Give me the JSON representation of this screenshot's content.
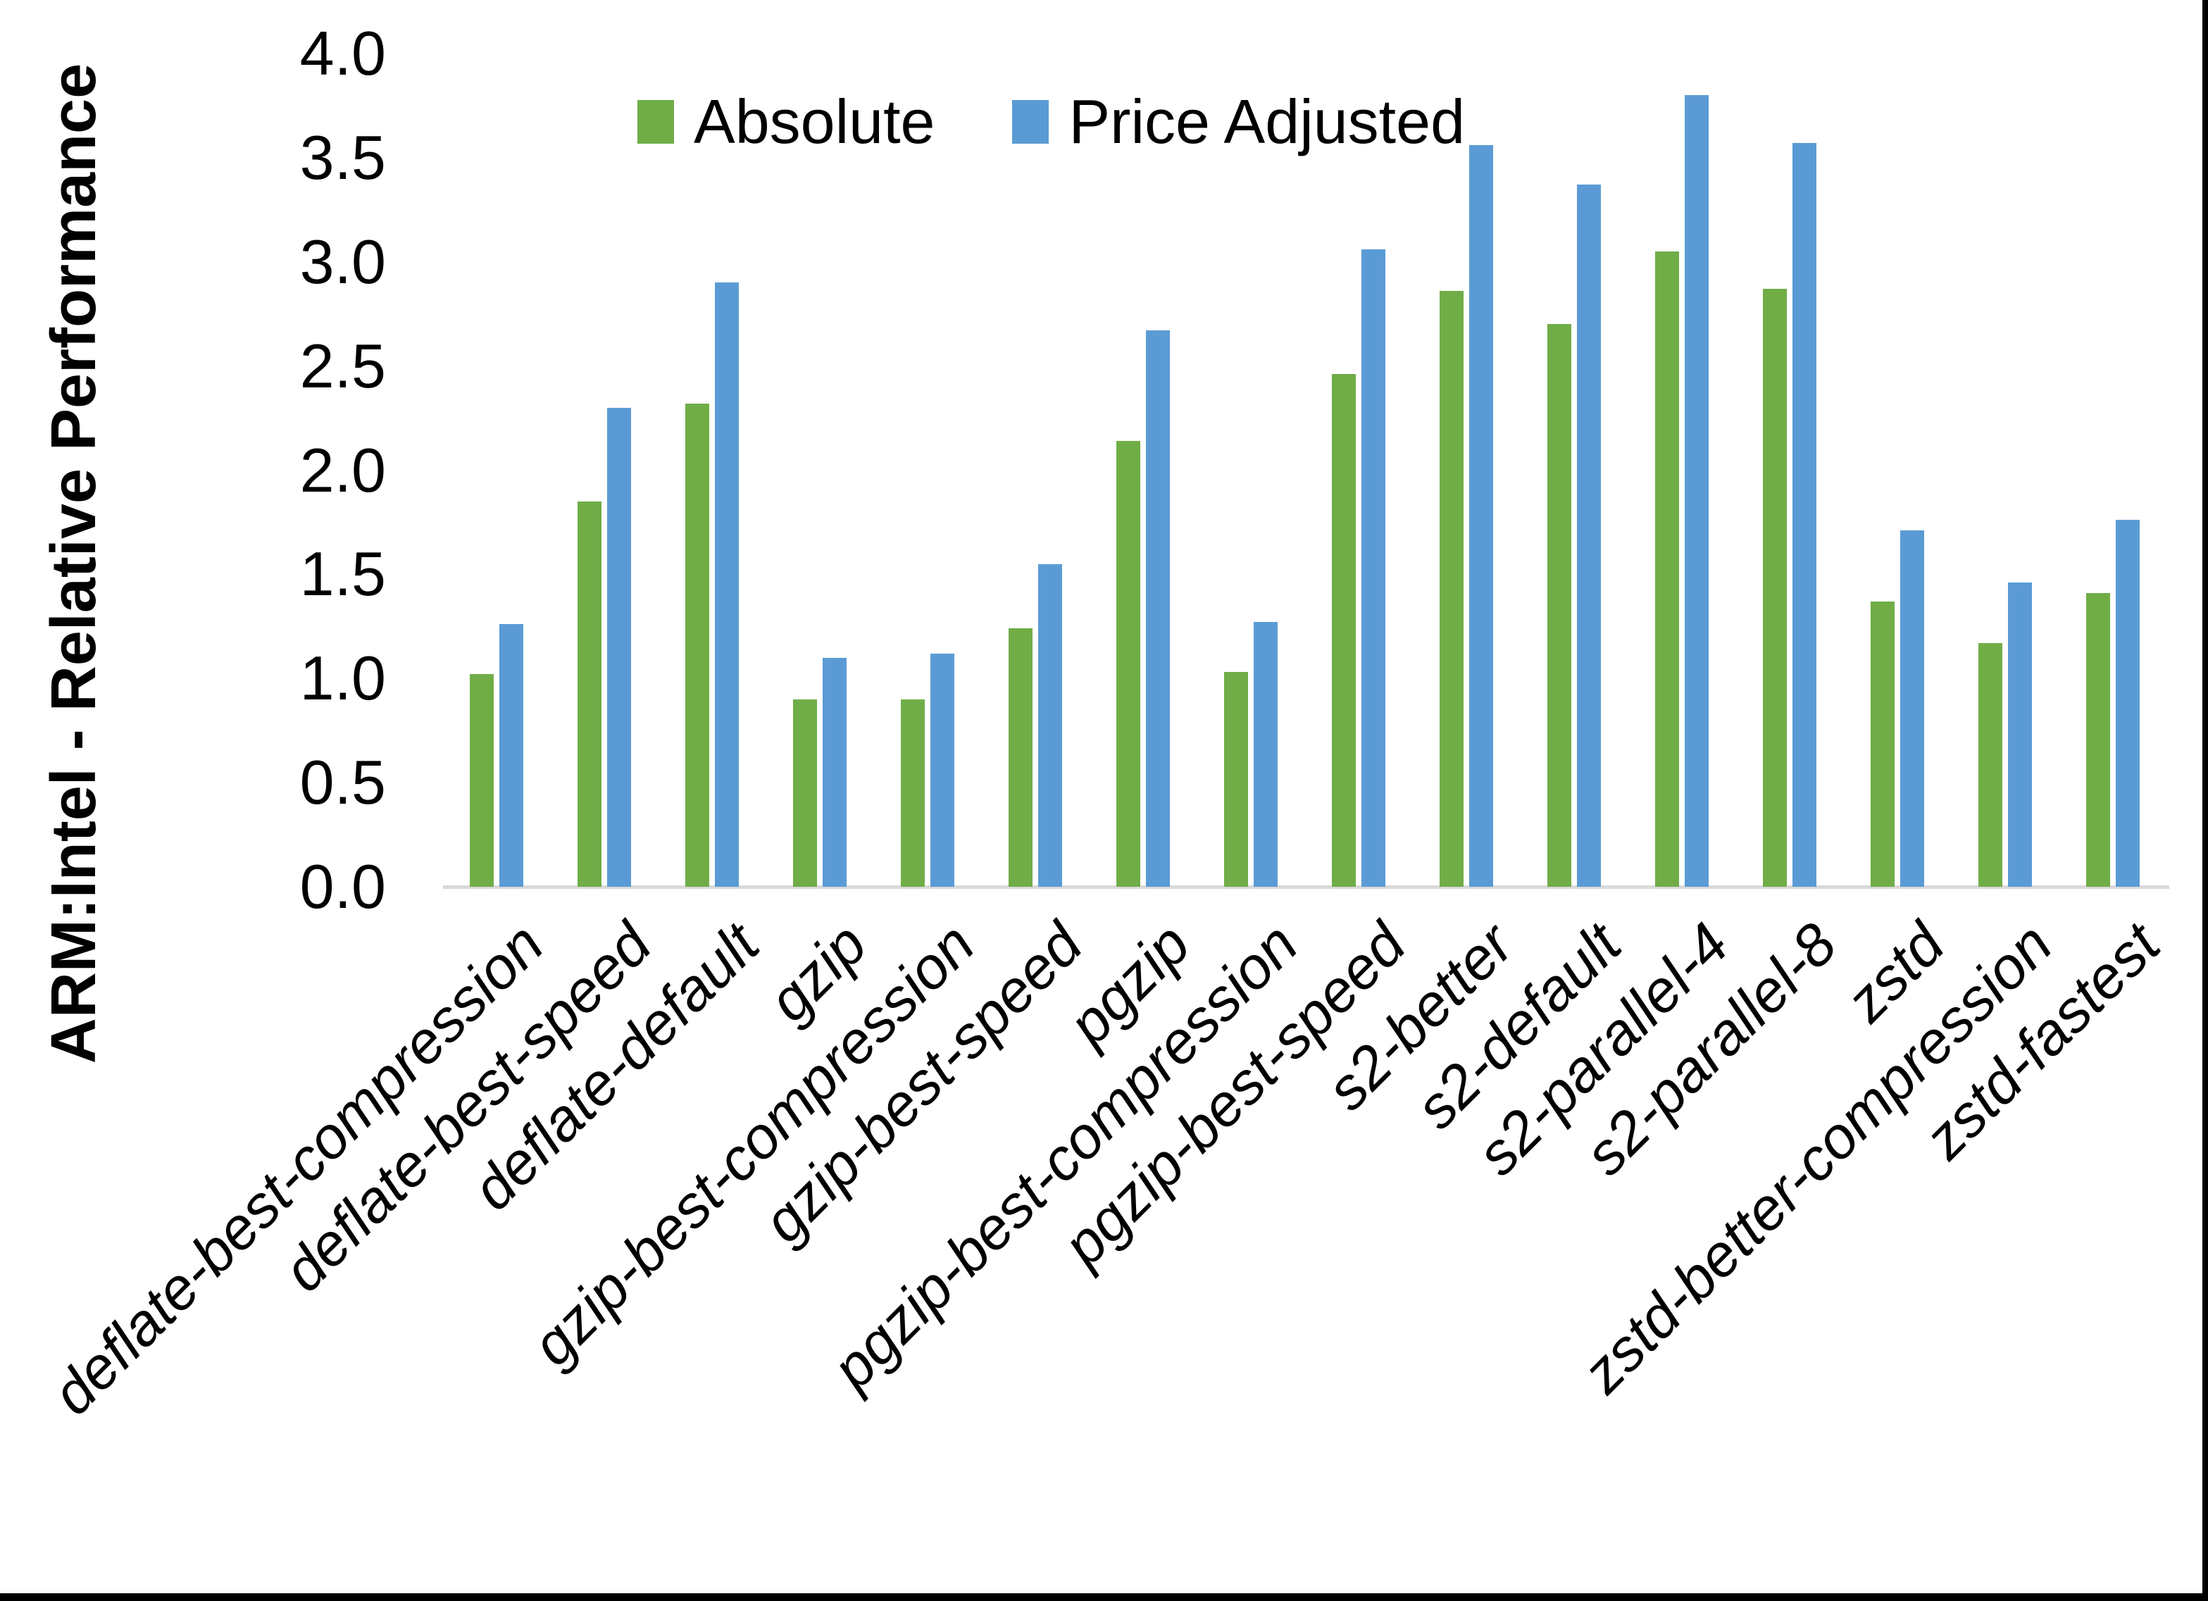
{
  "chart_data": {
    "type": "bar",
    "title": "",
    "xlabel": "",
    "ylabel": "ARM:Intel - Relative Performance",
    "ylim": [
      0.0,
      4.0
    ],
    "ytick_step": 0.5,
    "ytick_labels_top_to_bottom": [
      "4.0",
      "3.5",
      "3.0",
      "2.5",
      "2.0",
      "1.5",
      "1.0",
      "0.5",
      "0.0"
    ],
    "grid": false,
    "legend_position": "top-center",
    "categories": [
      "deflate-best-compression",
      "deflate-best-speed",
      "deflate-default",
      "gzip",
      "gzip-best-compression",
      "gzip-best-speed",
      "pgzip",
      "pgzip-best-compression",
      "pgzip-best-speed",
      "s2-better",
      "s2-default",
      "s2-parallel-4",
      "s2-parallel-8",
      "zstd",
      "zstd-better-compression",
      "zstd-fastest"
    ],
    "series": [
      {
        "name": "Absolute",
        "color": "#70AD47",
        "values": [
          1.02,
          1.85,
          2.32,
          0.9,
          0.9,
          1.24,
          2.14,
          1.03,
          2.46,
          2.86,
          2.7,
          3.05,
          2.87,
          1.37,
          1.17,
          1.41
        ]
      },
      {
        "name": "Price Adjusted",
        "color": "#5B9BD5",
        "values": [
          1.26,
          2.3,
          2.9,
          1.1,
          1.12,
          1.55,
          2.67,
          1.27,
          3.06,
          3.56,
          3.37,
          3.8,
          3.57,
          1.71,
          1.46,
          1.76
        ]
      }
    ]
  }
}
